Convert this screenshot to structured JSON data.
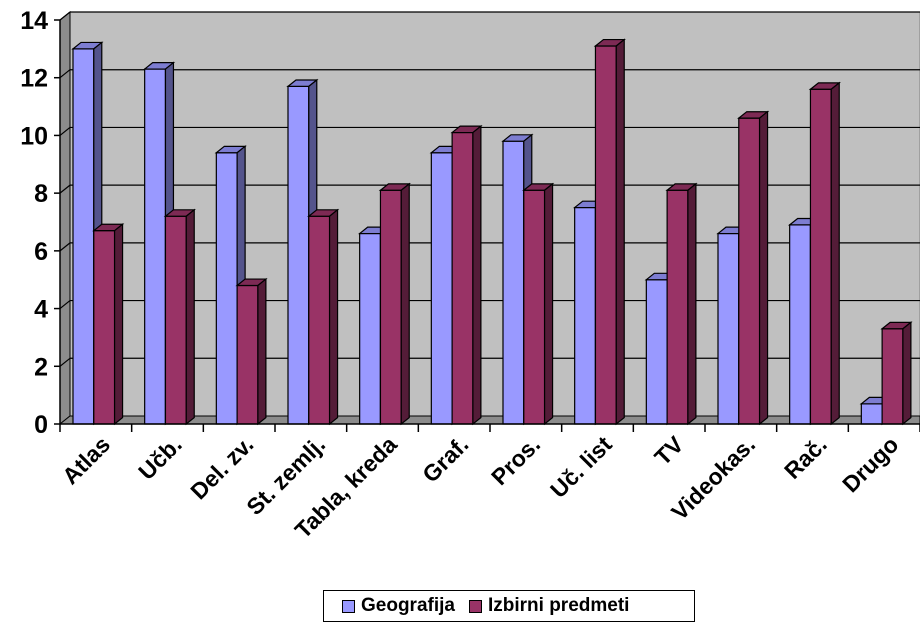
{
  "chart_data": {
    "type": "bar",
    "title": "",
    "xlabel": "",
    "ylabel": "",
    "ylim": [
      0,
      14
    ],
    "yticks": [
      "0",
      "2",
      "4",
      "6",
      "8",
      "10",
      "12",
      "14"
    ],
    "grid": true,
    "legend_position": "bottom",
    "categories": [
      "Atlas",
      "Učb.",
      "Del. zv.",
      "St. zemlj.",
      "Tabla, kreda",
      "Graf.",
      "Pros.",
      "Uč. list",
      "TV",
      "Videokas.",
      "Rač.",
      "Drugo"
    ],
    "series": [
      {
        "name": "Geografija",
        "color": "#9999ff",
        "values": [
          13.0,
          12.3,
          9.4,
          11.7,
          6.6,
          9.4,
          9.8,
          7.5,
          5.0,
          6.6,
          6.9,
          0.7
        ]
      },
      {
        "name": "Izbirni predmeti",
        "color": "#993366",
        "values": [
          6.7,
          7.2,
          4.8,
          7.2,
          8.1,
          10.1,
          8.1,
          13.1,
          8.1,
          10.6,
          11.6,
          3.3
        ]
      }
    ]
  }
}
